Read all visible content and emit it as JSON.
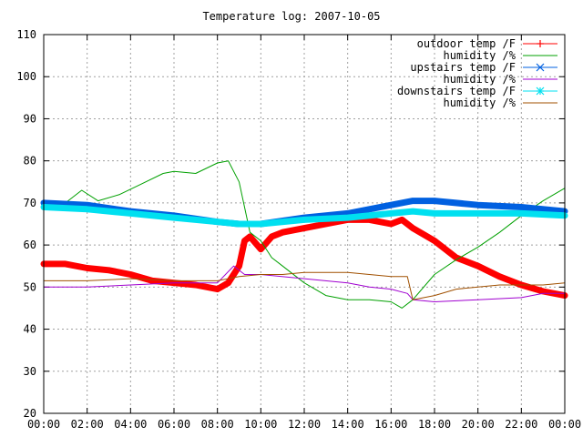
{
  "chart_data": {
    "type": "line",
    "title": "Temperature log: 2007-10-05",
    "xlabel": "",
    "ylabel": "",
    "ylim": [
      20,
      110
    ],
    "y_ticks": [
      "20",
      "30",
      "40",
      "50",
      "60",
      "70",
      "80",
      "90",
      "100",
      "110"
    ],
    "x_ticks": [
      "00:00",
      "02:00",
      "04:00",
      "06:00",
      "08:00",
      "10:00",
      "12:00",
      "14:00",
      "16:00",
      "18:00",
      "20:00",
      "22:00",
      "00:00"
    ],
    "grid": true,
    "legend_position": "top-right",
    "series": [
      {
        "name": "outdoor temp /F",
        "color": "#ff0000",
        "marker": "plus",
        "x": [
          "00:00",
          "01:00",
          "02:00",
          "03:00",
          "04:00",
          "05:00",
          "06:00",
          "07:00",
          "08:00",
          "08:30",
          "09:00",
          "09:15",
          "09:30",
          "10:00",
          "10:30",
          "11:00",
          "12:00",
          "13:00",
          "14:00",
          "15:00",
          "16:00",
          "16:30",
          "17:00",
          "18:00",
          "19:00",
          "20:00",
          "21:00",
          "22:00",
          "23:00",
          "24:00"
        ],
        "values": [
          55.5,
          55.5,
          54.5,
          54,
          53,
          51.5,
          51,
          50.5,
          49.5,
          51,
          55,
          61,
          62,
          59,
          62,
          63,
          64,
          65,
          66,
          66,
          65,
          66,
          64,
          61,
          57,
          55,
          52.5,
          50.5,
          49,
          48
        ]
      },
      {
        "name": "humidity /%",
        "color": "#00a000",
        "marker": "none",
        "x": [
          "00:00",
          "01:00",
          "01:45",
          "02:30",
          "03:30",
          "04:30",
          "05:30",
          "06:00",
          "07:00",
          "08:00",
          "08:30",
          "09:00",
          "09:30",
          "10:00",
          "10:30",
          "11:00",
          "12:00",
          "13:00",
          "14:00",
          "15:00",
          "16:00",
          "16:30",
          "17:00",
          "18:00",
          "19:00",
          "20:00",
          "21:00",
          "22:00",
          "23:00",
          "24:00"
        ],
        "values": [
          69.5,
          70,
          73,
          70.5,
          72,
          74.5,
          77,
          77.5,
          77,
          79.5,
          80,
          75,
          63,
          61,
          57,
          55,
          51,
          48,
          47,
          47,
          46.5,
          45,
          47,
          53,
          56.5,
          59.5,
          63,
          67,
          70.5,
          73.5
        ]
      },
      {
        "name": "upstairs temp /F",
        "color": "#0060e0",
        "marker": "cross",
        "x": [
          "00:00",
          "02:00",
          "04:00",
          "06:00",
          "08:00",
          "09:00",
          "10:00",
          "12:00",
          "14:00",
          "16:00",
          "17:00",
          "18:00",
          "20:00",
          "22:00",
          "24:00"
        ],
        "values": [
          70,
          69.5,
          68,
          67,
          65.5,
          65,
          65,
          66.5,
          67.5,
          69.5,
          70.5,
          70.5,
          69.5,
          69,
          68
        ]
      },
      {
        "name": "humidity /%",
        "color": "#a000d0",
        "marker": "none",
        "x": [
          "00:00",
          "02:00",
          "04:00",
          "06:00",
          "08:00",
          "08:45",
          "09:15",
          "10:00",
          "12:00",
          "14:00",
          "15:00",
          "16:00",
          "16:45",
          "17:00",
          "18:00",
          "20:00",
          "22:00",
          "23:00",
          "24:00"
        ],
        "values": [
          50,
          50,
          50.5,
          51,
          51,
          55,
          53,
          53,
          52,
          51,
          50,
          49.5,
          48.5,
          47,
          46.5,
          47,
          47.5,
          48.5,
          48.5
        ]
      },
      {
        "name": "downstairs temp /F",
        "color": "#00e0f0",
        "marker": "star",
        "x": [
          "00:00",
          "02:00",
          "04:00",
          "06:00",
          "08:00",
          "09:00",
          "10:00",
          "12:00",
          "14:00",
          "16:00",
          "17:00",
          "18:00",
          "20:00",
          "22:00",
          "24:00"
        ],
        "values": [
          69,
          68.5,
          67.5,
          66.5,
          65.5,
          65,
          65,
          66,
          66.5,
          67.5,
          68,
          67.5,
          67.5,
          67.5,
          67
        ]
      },
      {
        "name": "humidity /%",
        "color": "#a05000",
        "marker": "none",
        "x": [
          "00:00",
          "02:00",
          "04:00",
          "06:00",
          "08:00",
          "09:00",
          "10:00",
          "11:00",
          "12:00",
          "14:00",
          "16:00",
          "16:45",
          "17:00",
          "18:00",
          "19:00",
          "20:00",
          "21:00",
          "22:00",
          "23:00",
          "24:00"
        ],
        "values": [
          51.5,
          51.5,
          52,
          51.5,
          51.5,
          52.5,
          53,
          53,
          53.5,
          53.5,
          52.5,
          52.5,
          47,
          48,
          49.5,
          50,
          50.5,
          50.5,
          50.5,
          51
        ]
      }
    ]
  }
}
